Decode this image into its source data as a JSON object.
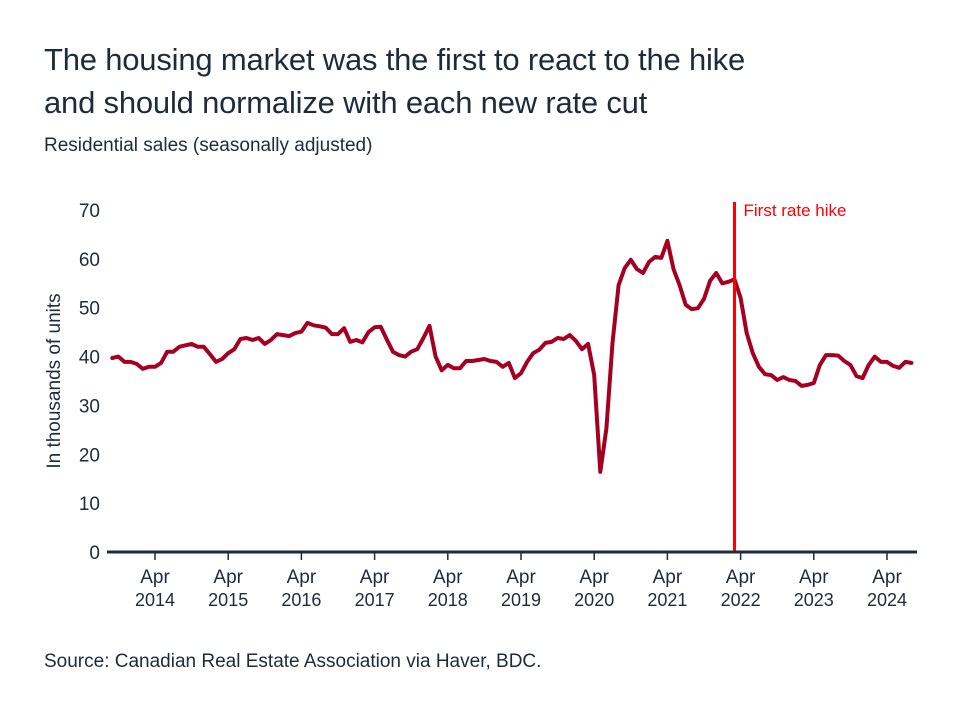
{
  "title_line1": "The housing market was the first to react to the hike",
  "title_line2": "and should normalize with each new rate cut",
  "subtitle": "Residential sales (seasonally adjusted)",
  "source": "Source: Canadian Real Estate Association via Haver, BDC.",
  "colors": {
    "line": "#a50021",
    "annotation": "#ff0000",
    "axis": "#1e2b3a",
    "text": "#1e2b3a"
  },
  "chart_data": {
    "type": "line",
    "title": "The housing market was the first to react to the hike and should normalize with each new rate cut",
    "subtitle": "Residential sales (seasonally adjusted)",
    "xlabel": "",
    "ylabel": "In thousands of units",
    "ylim": [
      0,
      70
    ],
    "yticks": [
      0,
      10,
      20,
      30,
      40,
      50,
      60,
      70
    ],
    "xticks": [
      {
        "date": "2014-04",
        "month": "Apr",
        "year": "2014"
      },
      {
        "date": "2015-04",
        "month": "Apr",
        "year": "2015"
      },
      {
        "date": "2016-04",
        "month": "Apr",
        "year": "2016"
      },
      {
        "date": "2017-04",
        "month": "Apr",
        "year": "2017"
      },
      {
        "date": "2018-04",
        "month": "Apr",
        "year": "2018"
      },
      {
        "date": "2019-04",
        "month": "Apr",
        "year": "2019"
      },
      {
        "date": "2020-04",
        "month": "Apr",
        "year": "2020"
      },
      {
        "date": "2021-04",
        "month": "Apr",
        "year": "2021"
      },
      {
        "date": "2022-04",
        "month": "Apr",
        "year": "2022"
      },
      {
        "date": "2023-04",
        "month": "Apr",
        "year": "2023"
      },
      {
        "date": "2024-04",
        "month": "Apr",
        "year": "2024"
      }
    ],
    "grid": false,
    "annotation": {
      "date": "2022-03",
      "label": "First rate hike"
    },
    "x": [
      "2013-09",
      "2013-10",
      "2013-11",
      "2013-12",
      "2014-01",
      "2014-02",
      "2014-03",
      "2014-04",
      "2014-05",
      "2014-06",
      "2014-07",
      "2014-08",
      "2014-09",
      "2014-10",
      "2014-11",
      "2014-12",
      "2015-01",
      "2015-02",
      "2015-03",
      "2015-04",
      "2015-05",
      "2015-06",
      "2015-07",
      "2015-08",
      "2015-09",
      "2015-10",
      "2015-11",
      "2015-12",
      "2016-01",
      "2016-02",
      "2016-03",
      "2016-04",
      "2016-05",
      "2016-06",
      "2016-07",
      "2016-08",
      "2016-09",
      "2016-10",
      "2016-11",
      "2016-12",
      "2017-01",
      "2017-02",
      "2017-03",
      "2017-04",
      "2017-05",
      "2017-06",
      "2017-07",
      "2017-08",
      "2017-09",
      "2017-10",
      "2017-11",
      "2017-12",
      "2018-01",
      "2018-02",
      "2018-03",
      "2018-04",
      "2018-05",
      "2018-06",
      "2018-07",
      "2018-08",
      "2018-09",
      "2018-10",
      "2018-11",
      "2018-12",
      "2019-01",
      "2019-02",
      "2019-03",
      "2019-04",
      "2019-05",
      "2019-06",
      "2019-07",
      "2019-08",
      "2019-09",
      "2019-10",
      "2019-11",
      "2019-12",
      "2020-01",
      "2020-02",
      "2020-03",
      "2020-04",
      "2020-05",
      "2020-06",
      "2020-07",
      "2020-08",
      "2020-09",
      "2020-10",
      "2020-11",
      "2020-12",
      "2021-01",
      "2021-02",
      "2021-03",
      "2021-04",
      "2021-05",
      "2021-06",
      "2021-07",
      "2021-08",
      "2021-09",
      "2021-10",
      "2021-11",
      "2021-12",
      "2022-01",
      "2022-02",
      "2022-03",
      "2022-04",
      "2022-05",
      "2022-06",
      "2022-07",
      "2022-08",
      "2022-09",
      "2022-10",
      "2022-11",
      "2022-12",
      "2023-01",
      "2023-02",
      "2023-03",
      "2023-04",
      "2023-05",
      "2023-06",
      "2023-07",
      "2023-08",
      "2023-09",
      "2023-10",
      "2023-11",
      "2023-12",
      "2024-01",
      "2024-02",
      "2024-03",
      "2024-04",
      "2024-05",
      "2024-06",
      "2024-07",
      "2024-08"
    ],
    "series": [
      {
        "values": [
          39.7,
          40,
          38.9,
          38.9,
          38.5,
          37.5,
          37.9,
          37.9,
          38.7,
          41,
          41,
          42,
          42.3,
          42.6,
          42,
          42,
          40.5,
          38.9,
          39.5,
          40.7,
          41.5,
          43.6,
          43.8,
          43.4,
          43.8,
          42.6,
          43.4,
          44.6,
          44.4,
          44.2,
          44.8,
          45.1,
          46.9,
          46.4,
          46.2,
          45.9,
          44.6,
          44.6,
          45.8,
          43,
          43.4,
          42.9,
          45,
          46,
          46.1,
          43.5,
          41,
          40.3,
          40,
          41,
          41.5,
          43.8,
          46.3,
          40,
          37.2,
          38.3,
          37.6,
          37.6,
          39.1,
          39.1,
          39.3,
          39.5,
          39.1,
          38.9,
          37.9,
          38.7,
          35.6,
          36.6,
          38.9,
          40.7,
          41.4,
          42.8,
          43,
          43.8,
          43.6,
          44.4,
          43.2,
          41.5,
          42.6,
          36.2,
          16.4,
          25.3,
          42.8,
          54.6,
          58.1,
          59.8,
          57.9,
          57.1,
          59.4,
          60.4,
          60.2,
          63.7,
          57.9,
          54.6,
          50.6,
          49.7,
          49.9,
          51.8,
          55.5,
          57.1,
          55,
          55.3,
          55.8,
          52,
          44.8,
          40.7,
          37.9,
          36.4,
          36.2,
          35.2,
          35.8,
          35.2,
          35,
          34,
          34.2,
          34.6,
          38.3,
          40.3,
          40.3,
          40.2,
          39.1,
          38.3,
          36,
          35.6,
          38.3,
          40,
          38.9,
          38.9,
          38.1,
          37.7,
          38.9,
          38.7
        ]
      }
    ]
  }
}
